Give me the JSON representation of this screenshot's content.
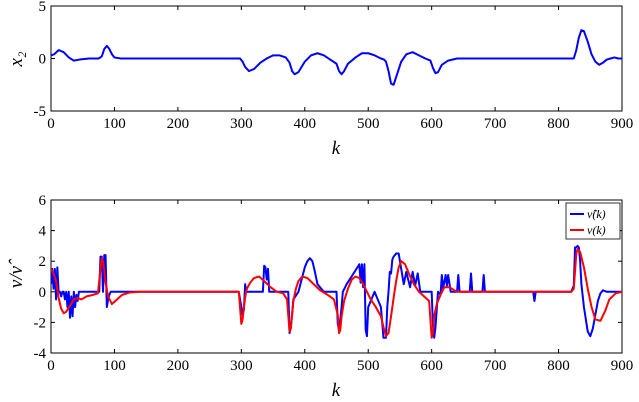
{
  "colors": {
    "blue": "#0000ff",
    "red": "#ff0000",
    "axis": "#000000"
  },
  "chart_data": [
    {
      "type": "line",
      "title": "",
      "xlabel": "k",
      "ylabel": "x₂",
      "xlim": [
        0,
        900
      ],
      "ylim": [
        -5,
        5
      ],
      "xticks": [
        0,
        100,
        200,
        300,
        400,
        500,
        600,
        700,
        800,
        900
      ],
      "yticks": [
        -5,
        0,
        5
      ],
      "grid": false,
      "series": [
        {
          "color": "#0000ff",
          "x": [
            0,
            5,
            12,
            20,
            28,
            36,
            45,
            60,
            75,
            80,
            84,
            88,
            92,
            96,
            100,
            110,
            130,
            150,
            200,
            250,
            290,
            298,
            302,
            306,
            312,
            320,
            330,
            340,
            350,
            360,
            370,
            376,
            380,
            384,
            390,
            400,
            410,
            420,
            430,
            440,
            450,
            454,
            458,
            462,
            468,
            480,
            490,
            500,
            510,
            520,
            525,
            528,
            532,
            536,
            540,
            546,
            552,
            560,
            570,
            580,
            590,
            598,
            602,
            606,
            610,
            616,
            626,
            640,
            660,
            700,
            750,
            800,
            824,
            828,
            832,
            836,
            840,
            846,
            852,
            858,
            864,
            870,
            876,
            882,
            888,
            894,
            900
          ],
          "y": [
            0.3,
            0.4,
            0.8,
            0.6,
            0.1,
            -0.2,
            -0.1,
            0,
            0,
            0.2,
            0.9,
            1.2,
            0.9,
            0.4,
            0.1,
            0,
            0,
            0,
            0,
            0,
            0,
            0,
            -0.3,
            -0.8,
            -1.2,
            -1,
            -0.4,
            0,
            0.3,
            0.3,
            0.1,
            -0.4,
            -1.2,
            -1.5,
            -1.3,
            -0.3,
            0.3,
            0.5,
            0.3,
            -0.1,
            -0.5,
            -1.2,
            -1.5,
            -1.2,
            -0.5,
            0.1,
            0.5,
            0.5,
            0.3,
            0,
            -0.1,
            -0.3,
            -1.2,
            -2.4,
            -2.5,
            -1.4,
            -0.3,
            0.4,
            0.6,
            0.3,
            0,
            -0.2,
            -0.9,
            -1.4,
            -1.3,
            -0.6,
            -0.2,
            0,
            0,
            0,
            0,
            0,
            0,
            0.8,
            2,
            2.7,
            2.6,
            1.6,
            0.4,
            -0.3,
            -0.6,
            -0.4,
            -0.1,
            0,
            0.1,
            0,
            0
          ]
        }
      ]
    },
    {
      "type": "line",
      "title": "",
      "xlabel": "k",
      "ylabel": "ν/ν̂",
      "xlim": [
        0,
        900
      ],
      "ylim": [
        -4,
        6
      ],
      "xticks": [
        0,
        100,
        200,
        300,
        400,
        500,
        600,
        700,
        800,
        900
      ],
      "yticks": [
        -4,
        -2,
        0,
        2,
        4,
        6
      ],
      "grid": false,
      "legend": {
        "position": "top-right",
        "entries": [
          "ν̂(k)",
          "ν(k)"
        ]
      },
      "series": [
        {
          "name": "ν̂(k)",
          "color": "#0000ff",
          "x": [
            0,
            2,
            4,
            6,
            8,
            10,
            12,
            14,
            16,
            18,
            20,
            22,
            24,
            26,
            28,
            30,
            32,
            34,
            36,
            38,
            40,
            42,
            44,
            48,
            56,
            66,
            74,
            76,
            78,
            80,
            82,
            84,
            86,
            88,
            90,
            92,
            94,
            100,
            140,
            200,
            260,
            296,
            300,
            302,
            304,
            306,
            308,
            310,
            320,
            330,
            334,
            336,
            338,
            340,
            342,
            344,
            350,
            360,
            370,
            374,
            376,
            378,
            380,
            382,
            390,
            400,
            404,
            408,
            412,
            416,
            420,
            430,
            440,
            450,
            452,
            454,
            456,
            458,
            460,
            466,
            480,
            486,
            488,
            490,
            492,
            494,
            496,
            498,
            500,
            510,
            520,
            524,
            526,
            528,
            530,
            532,
            534,
            536,
            538,
            540,
            544,
            548,
            552,
            556,
            560,
            566,
            570,
            574,
            578,
            582,
            590,
            600,
            602,
            604,
            606,
            610,
            614,
            616,
            618,
            622,
            624,
            626,
            630,
            640,
            642,
            644,
            660,
            662,
            664,
            680,
            682,
            684,
            700,
            760,
            762,
            764,
            766,
            770,
            800,
            820,
            824,
            826,
            828,
            830,
            832,
            834,
            836,
            840,
            846,
            850,
            854,
            858,
            862,
            866,
            870,
            876,
            880,
            890,
            900
          ],
          "y": [
            0.5,
            1.5,
            0.2,
            1.5,
            -0.5,
            1.6,
            0,
            0,
            -0.3,
            0,
            0,
            -0.5,
            0,
            -1,
            0,
            -1.7,
            -0.3,
            -1.6,
            0,
            -1,
            -0.2,
            -0.6,
            0,
            0,
            0,
            0,
            0,
            0,
            2.3,
            2.3,
            0,
            2.4,
            2.4,
            -1,
            -0.5,
            -0.2,
            0,
            0,
            0,
            0,
            0,
            0,
            -1,
            -1.5,
            -1.2,
            0.5,
            0,
            0,
            0,
            0,
            0,
            1.7,
            1.6,
            0.8,
            1.5,
            0,
            0,
            0,
            0,
            0,
            -2.7,
            -2.3,
            -1.5,
            -0.5,
            0,
            1.6,
            2,
            2.2,
            2,
            1.3,
            0.5,
            0,
            0,
            0,
            -2.1,
            -2.5,
            -1.8,
            -1,
            0,
            0.5,
            1.4,
            1.8,
            0.6,
            1.8,
            0.3,
            1.8,
            -2.5,
            -2.9,
            -1,
            0,
            -1,
            -3,
            -3,
            -3,
            -1,
            0,
            1.3,
            1.2,
            2.1,
            2.3,
            2.5,
            2.5,
            1.5,
            0.5,
            1.3,
            0.3,
            1.3,
            0.4,
            1.2,
            0,
            0,
            0,
            -2.2,
            -3,
            -2.3,
            0,
            -0.2,
            1.1,
            0.2,
            1.1,
            0.4,
            1.1,
            0,
            0,
            1.1,
            0,
            0,
            1.2,
            0,
            0,
            1.1,
            0,
            0,
            0,
            -0.6,
            0,
            0,
            0,
            0,
            0,
            0.4,
            2.9,
            2.9,
            3,
            2.9,
            2,
            0.5,
            -1,
            -2.6,
            -2.9,
            -2.4,
            -1.5,
            -0.6,
            -0.1,
            0.1,
            0,
            0,
            0,
            0
          ]
        },
        {
          "name": "ν(k)",
          "color": "#ff0000",
          "x": [
            0,
            4,
            8,
            12,
            16,
            20,
            24,
            30,
            36,
            42,
            48,
            56,
            66,
            74,
            78,
            80,
            82,
            84,
            86,
            90,
            96,
            104,
            112,
            124,
            140,
            200,
            260,
            296,
            300,
            302,
            304,
            306,
            308,
            310,
            314,
            320,
            328,
            336,
            346,
            356,
            366,
            372,
            376,
            378,
            380,
            382,
            386,
            390,
            396,
            404,
            414,
            424,
            436,
            446,
            452,
            454,
            456,
            458,
            462,
            468,
            474,
            480,
            486,
            492,
            498,
            504,
            512,
            520,
            524,
            528,
            532,
            536,
            540,
            544,
            548,
            552,
            558,
            564,
            572,
            580,
            588,
            596,
            600,
            602,
            604,
            608,
            614,
            620,
            628,
            640,
            680,
            760,
            820,
            824,
            828,
            830,
            834,
            840,
            846,
            852,
            858,
            866,
            874,
            880,
            890,
            900
          ],
          "y": [
            1.5,
            1.2,
            0.7,
            -0.4,
            -1.1,
            -1.4,
            -1.3,
            -0.9,
            -0.5,
            -0.4,
            -0.5,
            -0.3,
            -0.2,
            -0.1,
            1.5,
            2.2,
            2,
            1.4,
            0.6,
            -0.3,
            -0.8,
            -0.5,
            -0.2,
            -0.05,
            0,
            0,
            0,
            0,
            -2.1,
            -1.8,
            -1,
            -0.4,
            0.1,
            0.3,
            0.6,
            0.9,
            1,
            0.7,
            0.3,
            0,
            -0.1,
            -0.5,
            -2.6,
            -2.4,
            -1.5,
            -0.6,
            0.2,
            0.7,
            1,
            0.9,
            0.5,
            0.1,
            -0.2,
            -0.5,
            -1.5,
            -2.7,
            -2.5,
            -1.6,
            -0.6,
            0.2,
            0.8,
            1,
            0.9,
            0.5,
            0,
            -0.5,
            -1,
            -1.6,
            -2.3,
            -2.9,
            -2.7,
            -1.6,
            -0.4,
            0.7,
            1.6,
            2,
            1.8,
            1.2,
            0.5,
            0,
            -0.3,
            -0.6,
            -3,
            -2.7,
            -1.6,
            -0.8,
            -0.2,
            0.3,
            0.3,
            0,
            0,
            0,
            0,
            0.2,
            2.5,
            2.8,
            2.6,
            1.6,
            0.2,
            -1,
            -1.8,
            -1.9,
            -1.2,
            -0.5,
            -0.1,
            0
          ]
        }
      ]
    }
  ]
}
